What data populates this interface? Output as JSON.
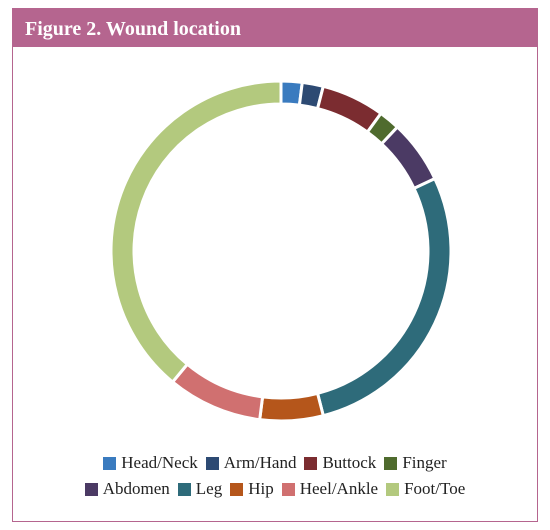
{
  "chart_data": {
    "type": "donut",
    "title": "Figure 2. Wound location",
    "categories": [
      "Head/Neck",
      "Arm/Hand",
      "Buttock",
      "Finger",
      "Abdomen",
      "Leg",
      "Hip",
      "Heel/Ankle",
      "Foot/Toe"
    ],
    "values": [
      2,
      2,
      6,
      2,
      6,
      28,
      6,
      9,
      39
    ],
    "colors": [
      "#3a7bbf",
      "#2d4a73",
      "#7b2c30",
      "#4f6b2e",
      "#4b3a64",
      "#2e6b7a",
      "#b5561b",
      "#d07070",
      "#b3c97e"
    ]
  }
}
